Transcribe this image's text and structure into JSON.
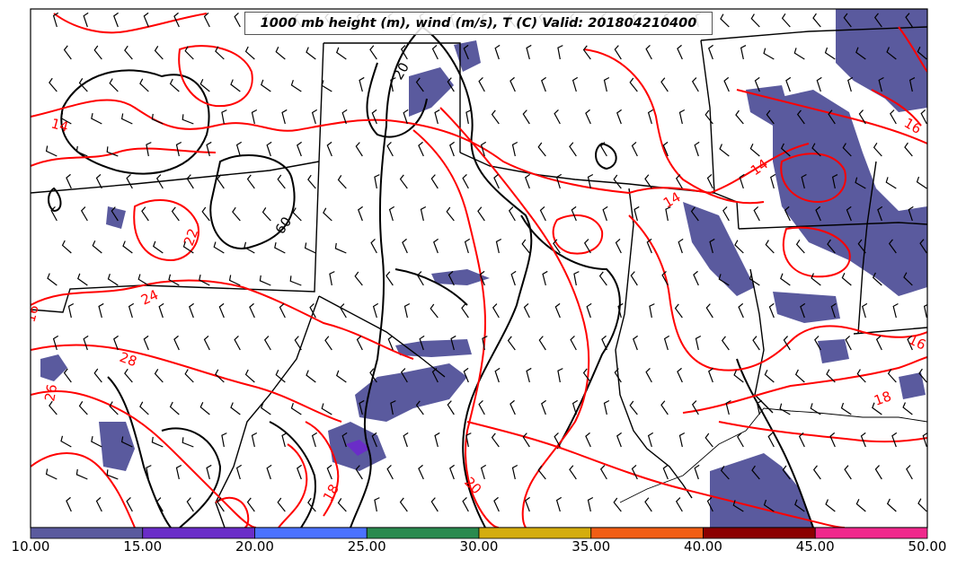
{
  "title": "1000 mb height (m), wind (m/s), T (C) Valid: 201804210400",
  "colorbar": {
    "ticks": [
      "10.00",
      "15.00",
      "20.00",
      "25.00",
      "30.00",
      "35.00",
      "40.00",
      "45.00",
      "50.00"
    ],
    "colors": [
      "#5a5a9e",
      "#6a2dc8",
      "#4b72ff",
      "#2a8a4f",
      "#d4ad0e",
      "#f15e14",
      "#8b0000",
      "#f0288c"
    ]
  },
  "contour_labels": {
    "height": [
      "20",
      "60"
    ],
    "temperature": [
      "14",
      "22",
      "24",
      "28",
      "14",
      "14",
      "16",
      "18",
      "16",
      "20",
      "26",
      "16",
      "18"
    ]
  },
  "colors": {
    "temperature_contour": "#ff0000",
    "height_contour": "#000000",
    "wind_shading": "#5a5a9e"
  }
}
